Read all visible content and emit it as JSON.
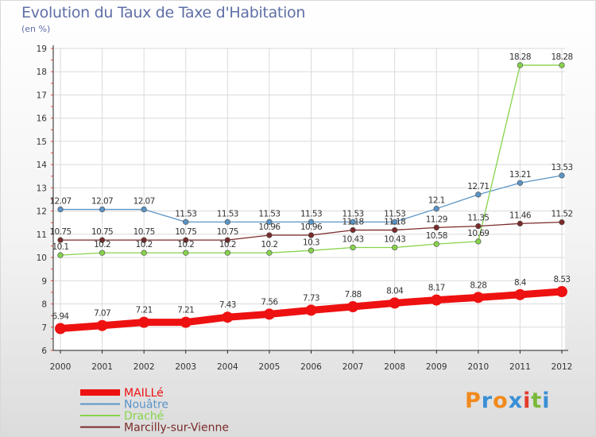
{
  "title": "Evolution du Taux de Taxe d'Habitation",
  "subtitle": "(en %)",
  "logo_text": "Proxiti",
  "logo_colors": [
    "#f08a1c",
    "#3a8fd6",
    "#f08a1c",
    "#3a8fd6",
    "#e33c2c",
    "#7ab93a",
    "#3a8fd6"
  ],
  "chart_data": {
    "type": "line",
    "x": [
      "2000",
      "2001",
      "2002",
      "2003",
      "2004",
      "2005",
      "2006",
      "2007",
      "2008",
      "2009",
      "2010",
      "2011",
      "2012"
    ],
    "ylim": [
      6,
      19
    ],
    "yticks": [
      "6",
      "7",
      "8",
      "9",
      "10",
      "11",
      "12",
      "13",
      "14",
      "15",
      "16",
      "17",
      "18",
      "19"
    ],
    "grid": true,
    "legend_position": "bottom-left",
    "series": [
      {
        "name": "MAILLé",
        "color": "#ee1111",
        "values": [
          6.94,
          7.07,
          7.21,
          7.21,
          7.43,
          7.56,
          7.73,
          7.88,
          8.04,
          8.17,
          8.28,
          8.4,
          8.53
        ],
        "labels": [
          "6.94",
          "7.07",
          "7.21",
          "7.21",
          "7.43",
          "7.56",
          "7.73",
          "7.88",
          "8.04",
          "8.17",
          "8.28",
          "8.4",
          "8.53"
        ]
      },
      {
        "name": "Nouâtre",
        "color": "#5a94c8",
        "values": [
          12.07,
          12.07,
          12.07,
          11.53,
          11.53,
          11.53,
          11.53,
          11.53,
          11.53,
          12.1,
          12.71,
          13.21,
          13.53
        ],
        "labels": [
          "12.07",
          "12.07",
          "12.07",
          "11.53",
          "11.53",
          "11.53",
          "11.53",
          "11.53",
          "11.53",
          "12.1",
          "12.71",
          "13.21",
          "13.53"
        ]
      },
      {
        "name": "Draché",
        "color": "#86d44a",
        "values": [
          10.1,
          10.2,
          10.2,
          10.2,
          10.2,
          10.2,
          10.3,
          10.43,
          10.43,
          10.58,
          10.69,
          18.28,
          18.28
        ],
        "labels": [
          "10.1",
          "10.2",
          "10.2",
          "10.2",
          "10.2",
          "10.2",
          "10.3",
          "10.43",
          "10.43",
          "10.58",
          "10.69",
          "18.28",
          "18.28"
        ]
      },
      {
        "name": "Marcilly-sur-Vienne",
        "color": "#7a2a2a",
        "values": [
          10.75,
          10.75,
          10.75,
          10.75,
          10.75,
          10.96,
          10.96,
          11.18,
          11.18,
          11.29,
          11.35,
          11.46,
          11.52
        ],
        "labels": [
          "10.75",
          "10.75",
          "10.75",
          "10.75",
          "10.75",
          "10.96",
          "10.96",
          "11.18",
          "11.18",
          "11.29",
          "11.35",
          "11.46",
          "11.52"
        ]
      }
    ]
  }
}
